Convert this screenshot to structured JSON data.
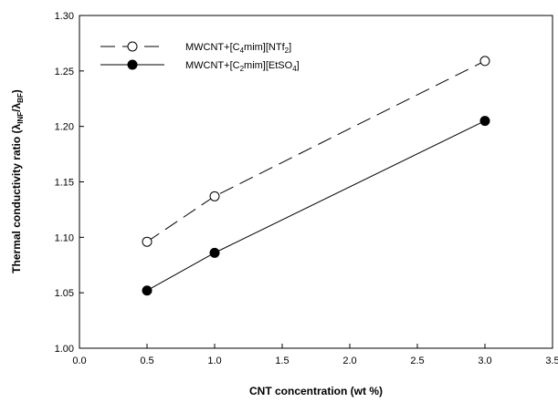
{
  "chart_data": {
    "type": "line",
    "xlabel": "CNT concentration (wt %)",
    "ylabel": {
      "prefix": "Thermal conductivity ratio (",
      "lambda1": "λ",
      "sub1": "INF",
      "slash": "/",
      "lambda2": "λ",
      "sub2": "BF",
      "suffix": ")"
    },
    "xlim": [
      0.0,
      3.5
    ],
    "ylim": [
      1.0,
      1.3
    ],
    "xticks": [
      "0.0",
      "0.5",
      "1.0",
      "1.5",
      "2.0",
      "2.5",
      "3.0",
      "3.5"
    ],
    "yticks": [
      "1.00",
      "1.05",
      "1.10",
      "1.15",
      "1.20",
      "1.25",
      "1.30"
    ],
    "xtick_values": [
      0.0,
      0.5,
      1.0,
      1.5,
      2.0,
      2.5,
      3.0,
      3.5
    ],
    "ytick_values": [
      1.0,
      1.05,
      1.1,
      1.15,
      1.2,
      1.25,
      1.3
    ],
    "grid": false,
    "legend_position": "top-left",
    "series": [
      {
        "name": "MWCNT+[C4mim][NTf2]",
        "name_parts": [
          "MWCNT+[C",
          "4",
          "mim][NTf",
          "2",
          "]"
        ],
        "marker": "open-circle",
        "line": "dashed",
        "x": [
          0.5,
          1.0,
          3.0
        ],
        "y": [
          1.096,
          1.137,
          1.259
        ]
      },
      {
        "name": "MWCNT+[C2mim][EtSO4]",
        "name_parts": [
          "MWCNT+[C",
          "2",
          "mim][EtSO",
          "4",
          "]"
        ],
        "marker": "filled-circle",
        "line": "solid",
        "x": [
          0.5,
          1.0,
          3.0
        ],
        "y": [
          1.052,
          1.086,
          1.205
        ]
      }
    ],
    "colors": {
      "line": "#000000",
      "background": "#ffffff"
    }
  }
}
